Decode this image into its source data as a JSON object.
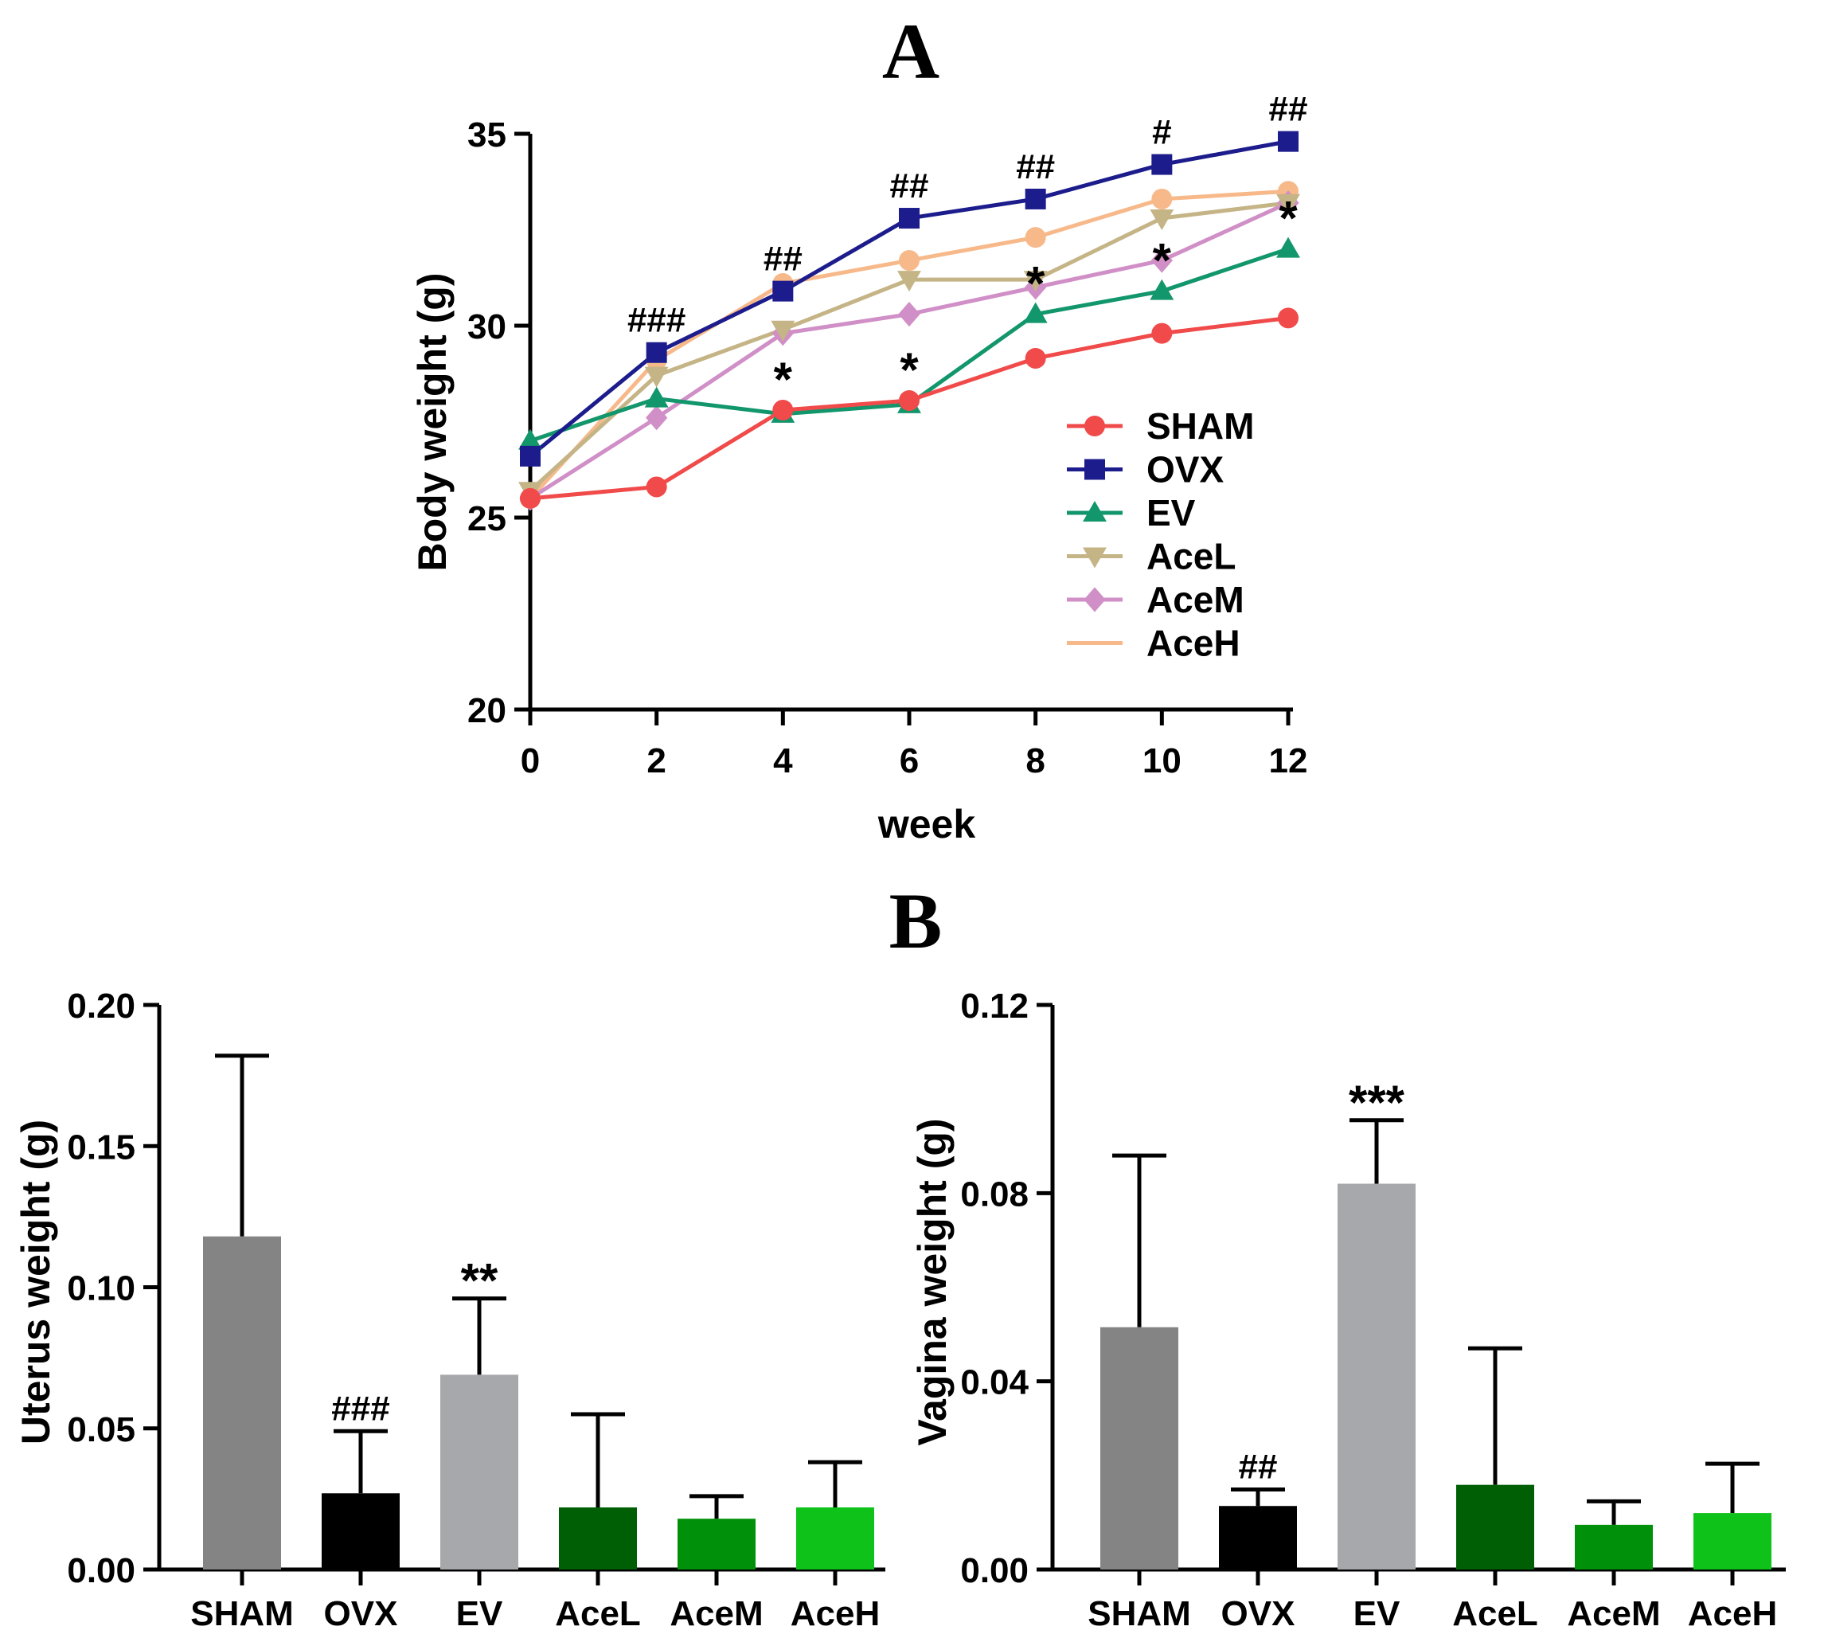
{
  "chart_data": [
    {
      "panel": "A",
      "type": "line",
      "title": "A",
      "xlabel": "week",
      "ylabel": "Body weight (g)",
      "x": [
        0,
        2,
        4,
        6,
        8,
        10,
        12
      ],
      "xticks": [
        "0",
        "2",
        "4",
        "6",
        "8",
        "10",
        "12"
      ],
      "ylim": [
        20,
        35
      ],
      "yticks": [
        "20",
        "25",
        "30",
        "35"
      ],
      "legend_position": "bottom-right",
      "series": [
        {
          "name": "SHAM",
          "color": "#f04a4a",
          "marker": "circle",
          "values": [
            25.5,
            25.8,
            27.8,
            28.05,
            29.15,
            29.8,
            30.2
          ]
        },
        {
          "name": "OVX",
          "color": "#1c1c8c",
          "marker": "square",
          "values": [
            26.6,
            29.3,
            30.9,
            32.8,
            33.3,
            34.2,
            34.8
          ]
        },
        {
          "name": "EV",
          "color": "#12966b",
          "marker": "triangle-up",
          "values": [
            27.0,
            28.1,
            27.7,
            27.95,
            30.3,
            30.9,
            32.0
          ]
        },
        {
          "name": "AceL",
          "color": "#c4b486",
          "marker": "triangle-down",
          "values": [
            25.7,
            28.7,
            29.9,
            31.2,
            31.2,
            32.8,
            33.2
          ]
        },
        {
          "name": "AceM",
          "color": "#d08fc6",
          "marker": "diamond",
          "values": [
            25.5,
            27.6,
            29.8,
            30.3,
            31.0,
            31.7,
            33.2
          ]
        },
        {
          "name": "AceH",
          "color": "#f7b98a",
          "marker": "circle",
          "values": [
            25.5,
            29.1,
            31.1,
            31.7,
            32.3,
            33.3,
            33.5
          ]
        }
      ],
      "annotations": [
        {
          "text": "###",
          "x": 2,
          "y": 29.3,
          "series": "OVX"
        },
        {
          "text": "##",
          "x": 4,
          "y": 30.9,
          "series": "OVX"
        },
        {
          "text": "##",
          "x": 6,
          "y": 32.8,
          "series": "OVX"
        },
        {
          "text": "##",
          "x": 8,
          "y": 33.3,
          "series": "OVX"
        },
        {
          "text": "#",
          "x": 10,
          "y": 34.2,
          "series": "OVX"
        },
        {
          "text": "##",
          "x": 12,
          "y": 34.8,
          "series": "OVX"
        },
        {
          "text": "*",
          "x": 4,
          "y": 27.8,
          "series": "SHAM"
        },
        {
          "text": "*",
          "x": 6,
          "y": 28.05,
          "series": "SHAM"
        },
        {
          "text": "*",
          "x": 8,
          "y": 30.3,
          "series": "EV"
        },
        {
          "text": "*",
          "x": 10,
          "y": 30.9,
          "series": "EV"
        },
        {
          "text": "*",
          "x": 12,
          "y": 32.0,
          "series": "EV"
        }
      ]
    },
    {
      "panel": "B",
      "type": "bar",
      "title": "B",
      "xlabel": "",
      "ylabel": "Uterus weight (g)",
      "categories": [
        "SHAM",
        "OVX",
        "EV",
        "AceL",
        "AceM",
        "AceH"
      ],
      "values": [
        0.118,
        0.027,
        0.069,
        0.022,
        0.018,
        0.022
      ],
      "errors": [
        0.064,
        0.022,
        0.027,
        0.033,
        0.008,
        0.016
      ],
      "colors": [
        "#848484",
        "#000000",
        "#a7a8ab",
        "#005f05",
        "#00900a",
        "#0ec21a"
      ],
      "annotations": [
        "",
        "###",
        "**",
        "",
        "",
        ""
      ],
      "ylim": [
        0,
        0.2
      ],
      "yticks": [
        "0.00",
        "0.05",
        "0.10",
        "0.15",
        "0.20"
      ]
    },
    {
      "panel": "B",
      "type": "bar",
      "title": "",
      "xlabel": "",
      "ylabel": "Vagina weight (g)",
      "categories": [
        "SHAM",
        "OVX",
        "EV",
        "AceL",
        "AceM",
        "AceH"
      ],
      "values": [
        0.0515,
        0.0135,
        0.082,
        0.018,
        0.0095,
        0.012
      ],
      "errors": [
        0.0365,
        0.0035,
        0.0135,
        0.029,
        0.005,
        0.0105
      ],
      "colors": [
        "#848484",
        "#000000",
        "#a7a8ab",
        "#005f05",
        "#00900a",
        "#0ec21a"
      ],
      "annotations": [
        "",
        "##",
        "***",
        "",
        "",
        ""
      ],
      "ylim": [
        0,
        0.12
      ],
      "yticks": [
        "0.00",
        "0.04",
        "0.08",
        "0.12"
      ]
    }
  ]
}
